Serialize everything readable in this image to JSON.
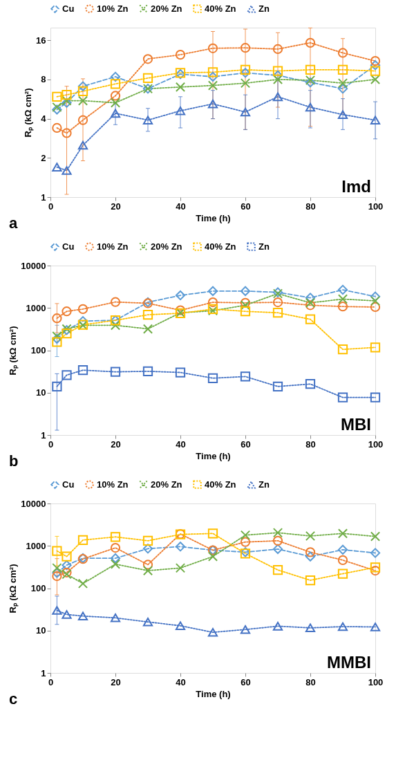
{
  "chart_data": [
    {
      "type": "line",
      "xlabel": "Time (h)",
      "ylabel": "Rₚ (kΩ cm²)",
      "log": "y",
      "grid": false,
      "legend": "top",
      "x": [
        2,
        5,
        10,
        20,
        30,
        40,
        50,
        60,
        70,
        80,
        90,
        100
      ],
      "xlim": [
        0,
        100
      ],
      "xticks": [
        0,
        20,
        40,
        60,
        80,
        100
      ],
      "ylim": [
        1,
        20
      ],
      "yticks": [
        1,
        2,
        4,
        8,
        16
      ],
      "annotations": [
        "a",
        "Imd"
      ],
      "series": [
        {
          "name": "Cu",
          "color": "#5b9bd5",
          "marker": "diamond",
          "line_style": "dashed",
          "values": [
            4.7,
            5.3,
            7.1,
            8.4,
            6.8,
            8.8,
            8.4,
            9.0,
            8.6,
            7.6,
            6.8,
            10.3
          ]
        },
        {
          "name": "10% Zn",
          "color": "#ed7d31",
          "marker": "circle",
          "line_style": "dotted",
          "values": [
            3.4,
            3.1,
            3.9,
            6.0,
            11.5,
            12.4,
            13.9,
            14.0,
            13.7,
            15.3,
            12.8,
            11.1
          ],
          "errors": [
            null,
            [
              1.05,
              7.1
            ],
            [
              1.9,
              8.1
            ],
            null,
            null,
            null,
            [
              4.0,
              18.7
            ],
            [
              3.3,
              19.5
            ],
            [
              4.9,
              18.3
            ],
            [
              3.5,
              19.9
            ],
            [
              4.4,
              16.5
            ],
            null
          ]
        },
        {
          "name": "20% Zn",
          "color": "#70ad47",
          "marker": "cross",
          "line_style": "dotted",
          "values": [
            4.9,
            5.5,
            5.5,
            5.3,
            6.8,
            7.0,
            7.2,
            7.5,
            8.0,
            7.9,
            7.5,
            8.0
          ]
        },
        {
          "name": "40% Zn",
          "color": "#ffc000",
          "marker": "square",
          "line_style": "dotted",
          "values": [
            5.9,
            6.1,
            6.5,
            7.4,
            8.2,
            9.0,
            9.1,
            9.5,
            9.3,
            9.5,
            9.5,
            9.3
          ]
        },
        {
          "name": "Zn",
          "color": "#4472c4",
          "marker": "triangle",
          "line_style": "dotted",
          "values": [
            1.7,
            1.6,
            2.5,
            4.4,
            3.9,
            4.6,
            5.2,
            4.5,
            5.9,
            4.9,
            4.3,
            3.9
          ],
          "errors": [
            null,
            null,
            null,
            [
              3.6,
              5.2
            ],
            [
              3.2,
              4.8
            ],
            [
              3.4,
              5.9
            ],
            [
              4.0,
              6.6
            ],
            [
              3.3,
              6.1
            ],
            [
              4.0,
              8.7
            ],
            [
              3.4,
              6.6
            ],
            [
              3.3,
              5.7
            ],
            [
              2.8,
              5.4
            ]
          ]
        }
      ]
    },
    {
      "type": "line",
      "xlabel": "Time (h)",
      "ylabel": "Rₚ (kΩ cm²)",
      "log": "y",
      "grid": false,
      "legend": "top",
      "x": [
        2,
        5,
        10,
        20,
        30,
        40,
        50,
        60,
        70,
        80,
        90,
        100
      ],
      "xlim": [
        0,
        100
      ],
      "xticks": [
        0,
        20,
        40,
        60,
        80,
        100
      ],
      "ylim": [
        1,
        10000
      ],
      "yticks": [
        1,
        10,
        100,
        1000,
        10000
      ],
      "annotations": [
        "b",
        "MBI"
      ],
      "series": [
        {
          "name": "Cu",
          "color": "#5b9bd5",
          "marker": "diamond",
          "line_style": "dashed",
          "values": [
            187,
            300,
            490,
            510,
            1360,
            1980,
            2500,
            2500,
            2340,
            1740,
            2680,
            1860
          ],
          "errors": [
            [
              71,
              390
            ],
            null,
            null,
            null,
            null,
            null,
            null,
            null,
            null,
            null,
            null,
            null
          ]
        },
        {
          "name": "10% Zn",
          "color": "#ed7d31",
          "marker": "circle",
          "line_style": "dotted",
          "values": [
            570,
            830,
            940,
            1380,
            1290,
            880,
            1360,
            1320,
            1360,
            1160,
            1080,
            1050
          ],
          "errors": [
            [
              260,
              1270
            ],
            null,
            null,
            null,
            null,
            null,
            null,
            null,
            null,
            null,
            null,
            null
          ]
        },
        {
          "name": "20% Zn",
          "color": "#70ad47",
          "marker": "cross",
          "line_style": "dotted",
          "values": [
            215,
            320,
            390,
            390,
            320,
            770,
            860,
            1160,
            2180,
            1320,
            1620,
            1470
          ]
        },
        {
          "name": "40% Zn",
          "color": "#ffc000",
          "marker": "square",
          "line_style": "dotted",
          "values": [
            157,
            250,
            400,
            510,
            690,
            750,
            940,
            830,
            770,
            540,
            105,
            117
          ]
        },
        {
          "name": "Zn",
          "color": "#4472c4",
          "marker": "square",
          "line_style": "dotted",
          "values": [
            14,
            26,
            34,
            31,
            32,
            30,
            22,
            24,
            14,
            16,
            7.7,
            7.7
          ],
          "errors": [
            [
              1.3,
              28
            ],
            null,
            null,
            null,
            null,
            null,
            null,
            null,
            null,
            null,
            null,
            null
          ]
        }
      ]
    },
    {
      "type": "line",
      "xlabel": "Time (h)",
      "ylabel": "Rₚ (kΩ cm²)",
      "log": "y",
      "grid": false,
      "legend": "top",
      "x": [
        2,
        5,
        10,
        20,
        30,
        40,
        50,
        60,
        70,
        80,
        90,
        100
      ],
      "xlim": [
        0,
        100
      ],
      "xticks": [
        0,
        20,
        40,
        60,
        80,
        100
      ],
      "ylim": [
        1,
        10000
      ],
      "yticks": [
        1,
        10,
        100,
        1000,
        10000
      ],
      "annotations": [
        "c",
        "MMBI"
      ],
      "series": [
        {
          "name": "Cu",
          "color": "#5b9bd5",
          "marker": "diamond",
          "line_style": "dashed",
          "values": [
            230,
            350,
            510,
            510,
            860,
            960,
            790,
            710,
            840,
            560,
            810,
            680
          ]
        },
        {
          "name": "10% Zn",
          "color": "#ed7d31",
          "marker": "circle",
          "line_style": "dotted",
          "values": [
            193,
            235,
            490,
            900,
            360,
            1910,
            790,
            1230,
            1320,
            710,
            460,
            260
          ],
          "errors": [
            [
              70,
              500
            ],
            null,
            null,
            null,
            null,
            null,
            null,
            null,
            null,
            null,
            null,
            null
          ]
        },
        {
          "name": "20% Zn",
          "color": "#70ad47",
          "marker": "cross",
          "line_style": "dotted",
          "values": [
            300,
            214,
            129,
            370,
            260,
            300,
            560,
            1790,
            2040,
            1710,
            1960,
            1670
          ]
        },
        {
          "name": "40% Zn",
          "color": "#ffc000",
          "marker": "square",
          "line_style": "dotted",
          "values": [
            760,
            560,
            1370,
            1630,
            1320,
            1860,
            1960,
            660,
            270,
            154,
            220,
            310
          ],
          "errors": [
            [
              340,
              1680
            ],
            null,
            null,
            null,
            null,
            null,
            null,
            null,
            null,
            null,
            null,
            null
          ]
        },
        {
          "name": "Zn",
          "color": "#4472c4",
          "marker": "triangle",
          "line_style": "dotted",
          "values": [
            30,
            24,
            22,
            20,
            16,
            13,
            9.1,
            10.6,
            12.7,
            11.6,
            12.4,
            12.2
          ],
          "errors": [
            [
              14,
              65
            ],
            null,
            null,
            null,
            null,
            null,
            null,
            null,
            null,
            null,
            null,
            null
          ]
        }
      ]
    }
  ]
}
